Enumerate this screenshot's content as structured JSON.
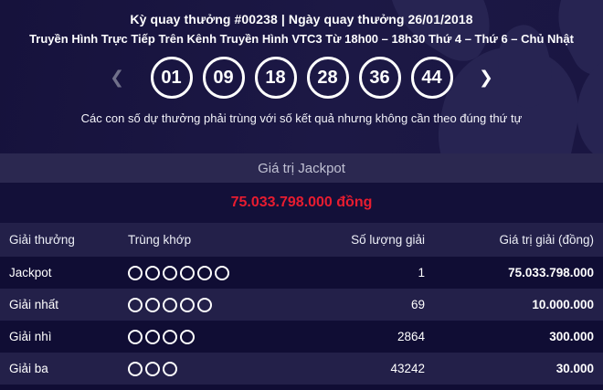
{
  "header": {
    "draw_info": "Kỳ quay thưởng #00238 | Ngày quay thưởng 26/01/2018",
    "broadcast_info": "Truyền Hình Trực Tiếp Trên Kênh Truyền Hình VTC3 Từ 18h00 – 18h30 Thứ 4 – Thứ 6 – Chủ Nhật"
  },
  "results": {
    "numbers": [
      "01",
      "09",
      "18",
      "28",
      "36",
      "44"
    ],
    "prev_arrow": "❮",
    "next_arrow": "❯",
    "note": "Các con số dự thưởng phải trùng với số kết quả nhưng không cần theo đúng thứ tự"
  },
  "jackpot": {
    "label": "Giá trị Jackpot",
    "value": "75.033.798.000 đồng"
  },
  "prize_table": {
    "columns": {
      "prize_name": "Giải thưởng",
      "match": "Trùng khớp",
      "winner_count": "Số lượng giải",
      "prize_value": "Giá trị giải (đồng)"
    },
    "rows": [
      {
        "name": "Jackpot",
        "match_count": 6,
        "winners": "1",
        "prize": "75.033.798.000"
      },
      {
        "name": "Giải nhất",
        "match_count": 5,
        "winners": "69",
        "prize": "10.000.000"
      },
      {
        "name": "Giải nhì",
        "match_count": 4,
        "winners": "2864",
        "prize": "300.000"
      },
      {
        "name": "Giải ba",
        "match_count": 3,
        "winners": "43242",
        "prize": "30.000"
      }
    ]
  },
  "colors": {
    "background_navy": "#16123c",
    "pattern_navy": "#272452",
    "bar_background": "#2b2850",
    "row_dark": "#100d34",
    "row_light": "#232049",
    "jackpot_red": "#e81c30",
    "text_white": "#ffffff",
    "muted_text": "#c0c1d3",
    "disabled_arrow": "#70708a"
  }
}
